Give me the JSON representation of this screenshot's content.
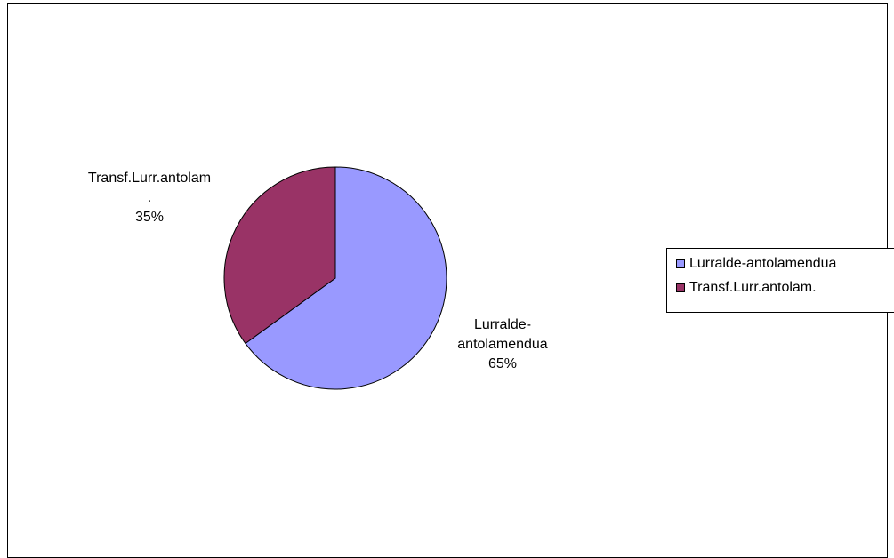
{
  "chart_data": {
    "type": "pie",
    "title": "",
    "slices": [
      {
        "name": "Lurralde-antolamendua",
        "value": 65,
        "label": "Lurralde-\nantolamendua\n65%",
        "color": "#9999ff"
      },
      {
        "name": "Transf.Lurr.antolam.",
        "value": 35,
        "label": "Transf.Lurr.antolam\n.\n35%",
        "color": "#993366"
      }
    ],
    "legend": {
      "placement": "right",
      "entries": [
        "Lurralde-antolamendua",
        "Transf.Lurr.antolam."
      ]
    }
  }
}
